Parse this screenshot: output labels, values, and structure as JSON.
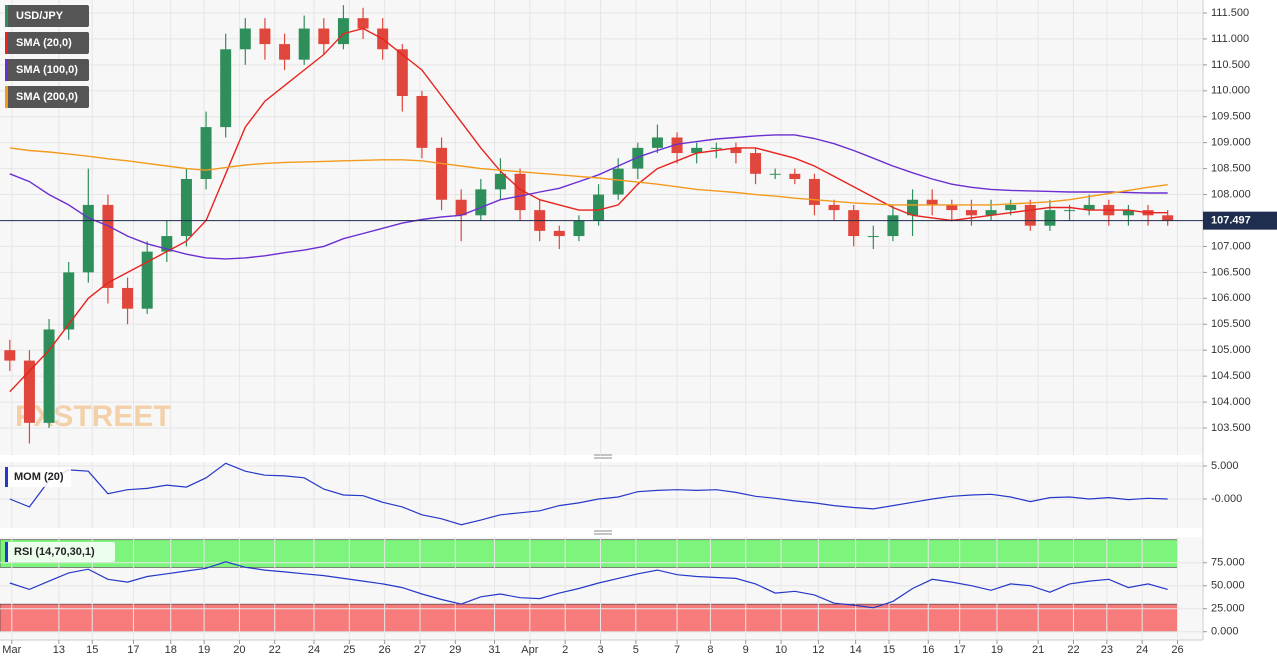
{
  "watermark": "FXSTREET",
  "chart_data": [
    {
      "type": "candlestick",
      "name": "USD/JPY",
      "up_color": "#2f8f5b",
      "down_color": "#e0463c",
      "legend_color": "#2f8f5b",
      "open": [
        105.0,
        104.8,
        103.6,
        105.4,
        106.5,
        107.8,
        106.2,
        105.8,
        106.9,
        107.2,
        108.3,
        109.3,
        110.8,
        111.2,
        110.9,
        110.6,
        111.2,
        110.9,
        111.4,
        111.2,
        110.8,
        109.9,
        108.9,
        107.9,
        107.6,
        108.1,
        108.4,
        107.7,
        107.3,
        107.2,
        107.5,
        108.0,
        108.5,
        108.9,
        109.1,
        108.8,
        108.9,
        108.9,
        108.8,
        108.4,
        108.4,
        108.3,
        107.8,
        107.7,
        107.2,
        107.2,
        107.6,
        107.9,
        107.8,
        107.7,
        107.6,
        107.7,
        107.8,
        107.4,
        107.7,
        107.7,
        107.8,
        107.6,
        107.7,
        107.6
      ],
      "high": [
        105.2,
        105.0,
        105.6,
        106.7,
        108.5,
        108.0,
        106.4,
        107.1,
        107.5,
        108.5,
        109.6,
        111.1,
        111.4,
        111.4,
        111.1,
        111.45,
        111.4,
        111.65,
        111.6,
        111.4,
        110.9,
        110.0,
        109.1,
        108.1,
        108.3,
        108.7,
        108.5,
        107.9,
        107.4,
        107.6,
        108.2,
        108.7,
        109.0,
        109.35,
        109.2,
        109.0,
        109.0,
        109.0,
        108.9,
        108.5,
        108.5,
        108.4,
        107.9,
        107.8,
        107.4,
        107.8,
        108.1,
        108.1,
        107.9,
        107.9,
        107.9,
        107.9,
        107.9,
        107.9,
        107.8,
        108.0,
        107.9,
        107.8,
        107.8,
        107.7
      ],
      "low": [
        104.6,
        103.2,
        103.5,
        105.2,
        106.3,
        105.9,
        105.5,
        105.7,
        106.7,
        107.0,
        108.1,
        109.1,
        110.5,
        110.6,
        110.4,
        110.5,
        110.7,
        110.8,
        111.0,
        110.6,
        109.6,
        108.7,
        107.7,
        107.1,
        107.5,
        107.9,
        107.5,
        107.1,
        106.95,
        107.1,
        107.4,
        107.9,
        108.3,
        108.8,
        108.6,
        108.6,
        108.7,
        108.6,
        108.2,
        108.3,
        108.2,
        107.6,
        107.5,
        107.0,
        106.95,
        107.1,
        107.2,
        107.6,
        107.5,
        107.4,
        107.5,
        107.6,
        107.3,
        107.3,
        107.5,
        107.6,
        107.4,
        107.4,
        107.4,
        107.4
      ],
      "close": [
        104.8,
        103.6,
        105.4,
        106.5,
        107.8,
        106.2,
        105.8,
        106.9,
        107.2,
        108.3,
        109.3,
        110.8,
        111.2,
        110.9,
        110.6,
        111.2,
        110.9,
        111.4,
        111.2,
        110.8,
        109.9,
        108.9,
        107.9,
        107.6,
        108.1,
        108.4,
        107.7,
        107.3,
        107.2,
        107.5,
        108.0,
        108.5,
        108.9,
        109.1,
        108.8,
        108.9,
        108.9,
        108.8,
        108.4,
        108.4,
        108.3,
        107.8,
        107.7,
        107.2,
        107.2,
        107.6,
        107.9,
        107.8,
        107.7,
        107.6,
        107.7,
        107.8,
        107.4,
        107.7,
        107.7,
        107.8,
        107.6,
        107.7,
        107.6,
        107.5
      ],
      "lines": [
        {
          "name": "SMA (20,0)",
          "color": "#e8231f",
          "values": [
            104.2,
            104.6,
            105.0,
            105.5,
            106.0,
            106.3,
            106.5,
            106.7,
            106.9,
            107.1,
            107.5,
            108.4,
            109.3,
            109.8,
            110.1,
            110.4,
            110.7,
            111.1,
            111.2,
            111.0,
            110.7,
            110.4,
            109.9,
            109.4,
            108.9,
            108.45,
            108.1,
            107.9,
            107.8,
            107.7,
            107.7,
            107.8,
            108.2,
            108.5,
            108.65,
            108.8,
            108.85,
            108.9,
            108.9,
            108.8,
            108.7,
            108.55,
            108.35,
            108.15,
            107.95,
            107.75,
            107.6,
            107.55,
            107.5,
            107.55,
            107.6,
            107.65,
            107.7,
            107.75,
            107.75,
            107.7,
            107.7,
            107.7,
            107.65,
            107.65
          ]
        },
        {
          "name": "SMA (100,0)",
          "color": "#6a2fd0",
          "values": [
            108.4,
            108.25,
            108.0,
            107.8,
            107.55,
            107.4,
            107.2,
            107.05,
            106.95,
            106.85,
            106.78,
            106.76,
            106.78,
            106.82,
            106.88,
            106.93,
            107.0,
            107.15,
            107.25,
            107.35,
            107.45,
            107.52,
            107.57,
            107.6,
            107.75,
            107.9,
            107.97,
            108.05,
            108.12,
            108.25,
            108.38,
            108.55,
            108.72,
            108.85,
            108.97,
            109.02,
            109.07,
            109.1,
            109.13,
            109.15,
            109.15,
            109.08,
            108.98,
            108.85,
            108.7,
            108.55,
            108.42,
            108.3,
            108.2,
            108.14,
            108.1,
            108.08,
            108.07,
            108.06,
            108.05,
            108.05,
            108.05,
            108.04,
            108.03,
            108.03
          ]
        },
        {
          "name": "SMA (200,0)",
          "color": "#f39a1e",
          "values": [
            108.9,
            108.85,
            108.82,
            108.78,
            108.74,
            108.69,
            108.65,
            108.6,
            108.55,
            108.5,
            108.47,
            108.52,
            108.57,
            108.6,
            108.62,
            108.63,
            108.64,
            108.65,
            108.66,
            108.67,
            108.67,
            108.65,
            108.6,
            108.55,
            108.5,
            108.47,
            108.44,
            108.41,
            108.38,
            108.35,
            108.32,
            108.28,
            108.24,
            108.2,
            108.15,
            108.1,
            108.07,
            108.04,
            108.0,
            107.97,
            107.93,
            107.9,
            107.87,
            107.84,
            107.82,
            107.8,
            107.8,
            107.8,
            107.8,
            107.8,
            107.8,
            107.82,
            107.84,
            107.86,
            107.9,
            107.96,
            108.02,
            108.08,
            108.14,
            108.19
          ]
        }
      ],
      "last_price": 107.497,
      "last_color": "#1f2d4e",
      "ylim": [
        102.98,
        111.75
      ],
      "yticks": [
        {
          "value": 103.5,
          "label": "103.500"
        },
        {
          "value": 104.0,
          "label": "104.000"
        },
        {
          "value": 104.5,
          "label": "104.500"
        },
        {
          "value": 105.0,
          "label": "105.000"
        },
        {
          "value": 105.5,
          "label": "105.500"
        },
        {
          "value": 106.0,
          "label": "106.000"
        },
        {
          "value": 106.5,
          "label": "106.500"
        },
        {
          "value": 107.0,
          "label": "107.000"
        },
        {
          "value": 107.5,
          "label": "107.500"
        },
        {
          "value": 108.0,
          "label": "108.000"
        },
        {
          "value": 108.5,
          "label": "108.500"
        },
        {
          "value": 109.0,
          "label": "109.000"
        },
        {
          "value": 109.5,
          "label": "109.500"
        },
        {
          "value": 110.0,
          "label": "110.000"
        },
        {
          "value": 110.5,
          "label": "110.500"
        },
        {
          "value": 111.0,
          "label": "111.000"
        },
        {
          "value": 111.5,
          "label": "111.500"
        }
      ],
      "grid": true
    },
    {
      "type": "line",
      "name": "MOM (20)",
      "color": "#2538c8",
      "values": [
        0,
        -1.2,
        2.8,
        4.4,
        4.2,
        0.8,
        1.4,
        1.6,
        2.1,
        1.8,
        3.2,
        5.4,
        4.2,
        3.6,
        3.5,
        3.2,
        1.5,
        0.6,
        0.5,
        -0.5,
        -1.2,
        -2.4,
        -3.0,
        -3.9,
        -3.2,
        -2.4,
        -2.1,
        -1.8,
        -1.0,
        -0.6,
        0,
        0.3,
        1.1,
        1.3,
        1.4,
        1.3,
        1.4,
        1.0,
        0.4,
        0.1,
        -0.3,
        -0.6,
        -1.0,
        -1.3,
        -1.5,
        -1.0,
        -0.5,
        0,
        0.4,
        0.6,
        0.7,
        0.3,
        -0.4,
        0.2,
        0.3,
        0,
        0.2,
        -0.1,
        0.1,
        0
      ],
      "ylim": [
        -4.4,
        5.6
      ],
      "yticks": [
        {
          "value": 5,
          "label": "5.000"
        },
        {
          "value": 0,
          "label": "-0.000"
        }
      ],
      "grid": true
    },
    {
      "type": "line",
      "name": "RSI (14,70,30,1)",
      "color": "#2538c8",
      "values": [
        53,
        46,
        55,
        64,
        68,
        57,
        54,
        60,
        63,
        66,
        69,
        76,
        70,
        67,
        65,
        63,
        61,
        58,
        55,
        52,
        48,
        41,
        35,
        30,
        38,
        41,
        37,
        36,
        42,
        47,
        53,
        58,
        63,
        67,
        62,
        60,
        59,
        58,
        52,
        42,
        44,
        40,
        31,
        29,
        26,
        33,
        47,
        57,
        54,
        50,
        45,
        52,
        50,
        43,
        52,
        55,
        57,
        48,
        52,
        46
      ],
      "bands": [
        {
          "range": [
            70,
            100
          ],
          "color": "#7df57d"
        },
        {
          "range": [
            0,
            30
          ],
          "color": "#f77b7b"
        }
      ],
      "ylim": [
        -9,
        103
      ],
      "yticks": [
        {
          "value": 75,
          "label": "75.000"
        },
        {
          "value": 50,
          "label": "50.000"
        },
        {
          "value": 25,
          "label": "25.000"
        },
        {
          "value": 0,
          "label": "0.000"
        }
      ],
      "xlim": [
        -0.5,
        60.8
      ],
      "xticks": [
        {
          "value": 0.1,
          "label": "Mar"
        },
        {
          "value": 2.5,
          "label": "13"
        },
        {
          "value": 4.2,
          "label": "15"
        },
        {
          "value": 6.3,
          "label": "17"
        },
        {
          "value": 8.2,
          "label": "18"
        },
        {
          "value": 9.9,
          "label": "19"
        },
        {
          "value": 11.7,
          "label": "20"
        },
        {
          "value": 13.5,
          "label": "22"
        },
        {
          "value": 15.5,
          "label": "24"
        },
        {
          "value": 17.3,
          "label": "25"
        },
        {
          "value": 19.1,
          "label": "26"
        },
        {
          "value": 20.9,
          "label": "27"
        },
        {
          "value": 22.7,
          "label": "29"
        },
        {
          "value": 24.7,
          "label": "31"
        },
        {
          "value": 26.5,
          "label": "Apr"
        },
        {
          "value": 28.3,
          "label": "2"
        },
        {
          "value": 30.1,
          "label": "3"
        },
        {
          "value": 31.9,
          "label": "5"
        },
        {
          "value": 34.0,
          "label": "7"
        },
        {
          "value": 35.7,
          "label": "8"
        },
        {
          "value": 37.5,
          "label": "9"
        },
        {
          "value": 39.3,
          "label": "10"
        },
        {
          "value": 41.2,
          "label": "12"
        },
        {
          "value": 43.1,
          "label": "14"
        },
        {
          "value": 44.8,
          "label": "15"
        },
        {
          "value": 46.8,
          "label": "16"
        },
        {
          "value": 48.4,
          "label": "17"
        },
        {
          "value": 50.3,
          "label": "19"
        },
        {
          "value": 52.4,
          "label": "21"
        },
        {
          "value": 54.2,
          "label": "22"
        },
        {
          "value": 55.9,
          "label": "23"
        },
        {
          "value": 57.7,
          "label": "24"
        },
        {
          "value": 59.5,
          "label": "26"
        }
      ],
      "grid": true
    }
  ]
}
